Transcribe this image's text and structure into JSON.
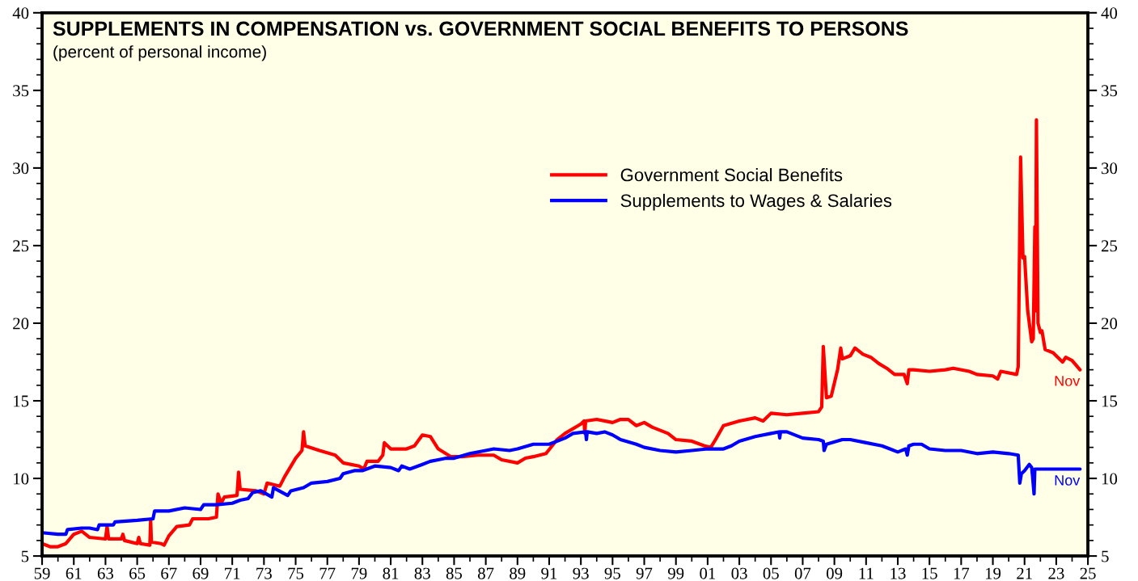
{
  "chart_data": {
    "type": "line",
    "title": "SUPPLEMENTS IN COMPENSATION vs. GOVERNMENT SOCIAL BENEFITS TO PERSONS",
    "subtitle": "(percent of personal income)",
    "series": [
      {
        "name": "Government Social Benefits",
        "color": "#ff0000",
        "x": [
          1959,
          1959.5,
          1960,
          1960.5,
          1961,
          1961.5,
          1962,
          1963,
          1963.1,
          1963.2,
          1964,
          1964.1,
          1964.2,
          1965,
          1965.1,
          1965.2,
          1965.8,
          1965.85,
          1965.9,
          1966.5,
          1966.7,
          1967,
          1967.5,
          1968.3,
          1968.5,
          1969.5,
          1970,
          1970.1,
          1970.3,
          1970.5,
          1971.3,
          1971.4,
          1971.5,
          1972.5,
          1973,
          1973.2,
          1974,
          1974.3,
          1975,
          1975.4,
          1975.5,
          1975.6,
          1976.5,
          1977.5,
          1978,
          1979,
          1979.3,
          1979.5,
          1980.2,
          1980.5,
          1980.6,
          1981,
          1982,
          1982.5,
          1983,
          1983.5,
          1984,
          1984.8,
          1985.5,
          1986.5,
          1987.5,
          1988,
          1989,
          1989.5,
          1990,
          1990.8,
          1991.5,
          1992,
          1993,
          1993.2,
          1993.25,
          1993.3,
          1994,
          1995,
          1995.5,
          1996,
          1996.5,
          1997,
          1997.5,
          1998.5,
          1999,
          2000,
          2000.8,
          2001.2,
          2001.5,
          2002,
          2003,
          2004,
          2004.5,
          2005,
          2006,
          2007,
          2008,
          2008.2,
          2008.3,
          2008.5,
          2008.8,
          2009.2,
          2009.4,
          2009.5,
          2010,
          2010.3,
          2010.8,
          2011.3,
          2011.8,
          2012.3,
          2012.8,
          2013.4,
          2013.6,
          2013.7,
          2014,
          2015,
          2016,
          2016.5,
          2017.5,
          2018,
          2019,
          2019.3,
          2019.5,
          2020.5,
          2020.6,
          2020.75,
          2020.9,
          2021,
          2021.2,
          2021.45,
          2021.55,
          2021.65,
          2021.7,
          2021.75,
          2021.85,
          2022,
          2022.1,
          2022.3,
          2022.8,
          2023.4,
          2023.6,
          2024,
          2024.5
        ],
        "values": [
          5.8,
          5.6,
          5.6,
          5.8,
          6.4,
          6.6,
          6.2,
          6.1,
          6.9,
          6.1,
          6.1,
          6.4,
          6.0,
          5.8,
          6.2,
          5.8,
          5.7,
          7.3,
          5.9,
          5.8,
          5.7,
          6.3,
          6.9,
          7.0,
          7.4,
          7.4,
          7.5,
          9.0,
          8.4,
          8.8,
          8.9,
          10.4,
          9.3,
          9.2,
          9.0,
          9.7,
          9.5,
          10.1,
          11.3,
          11.8,
          13.0,
          12.1,
          11.8,
          11.5,
          11.0,
          10.8,
          10.6,
          11.1,
          11.1,
          11.5,
          12.3,
          11.9,
          11.9,
          12.1,
          12.8,
          12.7,
          11.9,
          11.4,
          11.4,
          11.5,
          11.5,
          11.2,
          11.0,
          11.3,
          11.4,
          11.6,
          12.5,
          12.9,
          13.5,
          13.7,
          12.9,
          13.7,
          13.8,
          13.6,
          13.8,
          13.8,
          13.4,
          13.6,
          13.3,
          12.9,
          12.5,
          12.4,
          12.1,
          12.0,
          12.5,
          13.4,
          13.7,
          13.9,
          13.7,
          14.2,
          14.1,
          14.2,
          14.3,
          14.6,
          18.5,
          15.2,
          15.3,
          17.0,
          18.4,
          17.7,
          17.9,
          18.4,
          18.0,
          17.8,
          17.4,
          17.1,
          16.7,
          16.7,
          16.1,
          17.0,
          17.0,
          16.9,
          17.0,
          17.1,
          16.9,
          16.7,
          16.6,
          16.4,
          16.9,
          16.7,
          17.2,
          30.7,
          24.2,
          24.3,
          20.8,
          18.8,
          19.0,
          26.2,
          20.8,
          33.1,
          20.0,
          19.4,
          19.5,
          18.3,
          18.1,
          17.5,
          17.8,
          17.6,
          17.0
        ]
      },
      {
        "name": "Supplements to Wages & Salaries",
        "color": "#0000ff",
        "x": [
          1959,
          1960,
          1960.5,
          1960.6,
          1961.5,
          1962,
          1962.5,
          1962.6,
          1963.5,
          1963.6,
          1965,
          1966,
          1966.1,
          1967,
          1968,
          1969,
          1969.2,
          1970,
          1971,
          1971.5,
          1972,
          1972.3,
          1972.8,
          1973.5,
          1973.6,
          1974.5,
          1974.7,
          1975.5,
          1976,
          1977,
          1977.8,
          1978,
          1978.7,
          1979.2,
          1980,
          1981,
          1981.5,
          1981.7,
          1982.2,
          1983,
          1983.5,
          1984,
          1984.5,
          1985,
          1986,
          1987,
          1987.5,
          1988.5,
          1989,
          1990,
          1991,
          1992,
          1992.5,
          1993.3,
          1993.35,
          1993.4,
          1994,
          1994.5,
          1995,
          1995.5,
          1996.5,
          1997,
          1998,
          1999,
          2000,
          2001,
          2002,
          2002.5,
          2003,
          2004,
          2005,
          2005.5,
          2005.55,
          2005.6,
          2006,
          2007,
          2008,
          2008.3,
          2008.35,
          2008.5,
          2009.5,
          2010,
          2011,
          2012,
          2012.5,
          2013,
          2013.5,
          2013.6,
          2013.7,
          2014,
          2014.5,
          2015,
          2016,
          2017,
          2018,
          2019,
          2020,
          2020.6,
          2020.7,
          2020.8,
          2021,
          2021.3,
          2021.45,
          2021.5,
          2021.6,
          2021.65,
          2022,
          2023,
          2024,
          2024.5
        ],
        "values": [
          6.5,
          6.4,
          6.4,
          6.7,
          6.8,
          6.8,
          6.7,
          7.0,
          7.0,
          7.2,
          7.3,
          7.4,
          7.9,
          7.9,
          8.1,
          8.0,
          8.3,
          8.3,
          8.4,
          8.6,
          8.7,
          9.1,
          9.2,
          8.8,
          9.4,
          8.9,
          9.2,
          9.4,
          9.7,
          9.8,
          10.0,
          10.3,
          10.5,
          10.5,
          10.8,
          10.7,
          10.5,
          10.8,
          10.6,
          10.9,
          11.1,
          11.2,
          11.3,
          11.3,
          11.6,
          11.8,
          11.9,
          11.8,
          11.9,
          12.2,
          12.2,
          12.6,
          12.9,
          13.0,
          12.5,
          13.0,
          12.9,
          13.0,
          12.8,
          12.5,
          12.2,
          12.0,
          11.8,
          11.7,
          11.8,
          11.9,
          11.9,
          12.1,
          12.4,
          12.7,
          12.9,
          13.0,
          12.6,
          13.0,
          13.0,
          12.6,
          12.5,
          12.4,
          11.8,
          12.2,
          12.5,
          12.5,
          12.3,
          12.1,
          11.9,
          11.7,
          11.9,
          11.5,
          12.1,
          12.2,
          12.2,
          11.9,
          11.8,
          11.8,
          11.6,
          11.7,
          11.6,
          11.5,
          9.7,
          10.3,
          10.5,
          10.9,
          10.7,
          10.2,
          9.0,
          10.6,
          10.6,
          10.6,
          10.6,
          10.6
        ]
      }
    ],
    "annotations": [
      {
        "text": "Nov",
        "x": 2024.5,
        "y": 17.0
      },
      {
        "text": "Nov",
        "x": 2024.5,
        "y": 10.6
      }
    ],
    "xlim": [
      1959,
      2025
    ],
    "xticks": [
      {
        "value": 1959,
        "label": "59"
      },
      {
        "value": 1960,
        "label": null
      },
      {
        "value": 1961,
        "label": "61"
      },
      {
        "value": 1962,
        "label": null
      },
      {
        "value": 1963,
        "label": "63"
      },
      {
        "value": 1964,
        "label": null
      },
      {
        "value": 1965,
        "label": "65"
      },
      {
        "value": 1966,
        "label": null
      },
      {
        "value": 1967,
        "label": "67"
      },
      {
        "value": 1968,
        "label": null
      },
      {
        "value": 1969,
        "label": "69"
      },
      {
        "value": 1970,
        "label": null
      },
      {
        "value": 1971,
        "label": "71"
      },
      {
        "value": 1972,
        "label": null
      },
      {
        "value": 1973,
        "label": "73"
      },
      {
        "value": 1974,
        "label": null
      },
      {
        "value": 1975,
        "label": "75"
      },
      {
        "value": 1976,
        "label": null
      },
      {
        "value": 1977,
        "label": "77"
      },
      {
        "value": 1978,
        "label": null
      },
      {
        "value": 1979,
        "label": "79"
      },
      {
        "value": 1980,
        "label": null
      },
      {
        "value": 1981,
        "label": "81"
      },
      {
        "value": 1982,
        "label": null
      },
      {
        "value": 1983,
        "label": "83"
      },
      {
        "value": 1984,
        "label": null
      },
      {
        "value": 1985,
        "label": "85"
      },
      {
        "value": 1986,
        "label": null
      },
      {
        "value": 1987,
        "label": "87"
      },
      {
        "value": 1988,
        "label": null
      },
      {
        "value": 1989,
        "label": "89"
      },
      {
        "value": 1990,
        "label": null
      },
      {
        "value": 1991,
        "label": "91"
      },
      {
        "value": 1992,
        "label": null
      },
      {
        "value": 1993,
        "label": "93"
      },
      {
        "value": 1994,
        "label": null
      },
      {
        "value": 1995,
        "label": "95"
      },
      {
        "value": 1996,
        "label": null
      },
      {
        "value": 1997,
        "label": "97"
      },
      {
        "value": 1998,
        "label": null
      },
      {
        "value": 1999,
        "label": "99"
      },
      {
        "value": 2000,
        "label": null
      },
      {
        "value": 2001,
        "label": "01"
      },
      {
        "value": 2002,
        "label": null
      },
      {
        "value": 2003,
        "label": "03"
      },
      {
        "value": 2004,
        "label": null
      },
      {
        "value": 2005,
        "label": "05"
      },
      {
        "value": 2006,
        "label": null
      },
      {
        "value": 2007,
        "label": "07"
      },
      {
        "value": 2008,
        "label": null
      },
      {
        "value": 2009,
        "label": "09"
      },
      {
        "value": 2010,
        "label": null
      },
      {
        "value": 2011,
        "label": "11"
      },
      {
        "value": 2012,
        "label": null
      },
      {
        "value": 2013,
        "label": "13"
      },
      {
        "value": 2014,
        "label": null
      },
      {
        "value": 2015,
        "label": "15"
      },
      {
        "value": 2016,
        "label": null
      },
      {
        "value": 2017,
        "label": "17"
      },
      {
        "value": 2018,
        "label": null
      },
      {
        "value": 2019,
        "label": "19"
      },
      {
        "value": 2020,
        "label": null
      },
      {
        "value": 2021,
        "label": "21"
      },
      {
        "value": 2022,
        "label": null
      },
      {
        "value": 2023,
        "label": "23"
      },
      {
        "value": 2024,
        "label": null
      },
      {
        "value": 2025,
        "label": "25"
      }
    ],
    "ylim": [
      5,
      40
    ],
    "yticks": [
      5,
      {
        "value": 6,
        "label": null
      },
      {
        "value": 7,
        "label": null
      },
      {
        "value": 8,
        "label": null
      },
      {
        "value": 9,
        "label": null
      },
      10,
      {
        "value": 11,
        "label": null
      },
      {
        "value": 12,
        "label": null
      },
      {
        "value": 13,
        "label": null
      },
      {
        "value": 14,
        "label": null
      },
      15,
      {
        "value": 16,
        "label": null
      },
      {
        "value": 17,
        "label": null
      },
      {
        "value": 18,
        "label": null
      },
      {
        "value": 19,
        "label": null
      },
      20,
      {
        "value": 21,
        "label": null
      },
      {
        "value": 22,
        "label": null
      },
      {
        "value": 23,
        "label": null
      },
      {
        "value": 24,
        "label": null
      },
      25,
      {
        "value": 26,
        "label": null
      },
      {
        "value": 27,
        "label": null
      },
      {
        "value": 28,
        "label": null
      },
      {
        "value": 29,
        "label": null
      },
      30,
      {
        "value": 31,
        "label": null
      },
      {
        "value": 32,
        "label": null
      },
      {
        "value": 33,
        "label": null
      },
      {
        "value": 34,
        "label": null
      },
      35,
      {
        "value": 36,
        "label": null
      },
      {
        "value": 37,
        "label": null
      },
      {
        "value": 38,
        "label": null
      },
      {
        "value": 39,
        "label": null
      },
      40
    ],
    "y2lim": [
      5,
      40
    ],
    "y2ticks": [
      5,
      {
        "value": 6,
        "label": null
      },
      {
        "value": 7,
        "label": null
      },
      {
        "value": 8,
        "label": null
      },
      {
        "value": 9,
        "label": null
      },
      10,
      {
        "value": 11,
        "label": null
      },
      {
        "value": 12,
        "label": null
      },
      {
        "value": 13,
        "label": null
      },
      {
        "value": 14,
        "label": null
      },
      15,
      {
        "value": 16,
        "label": null
      },
      {
        "value": 17,
        "label": null
      },
      {
        "value": 18,
        "label": null
      },
      {
        "value": 19,
        "label": null
      },
      20,
      {
        "value": 21,
        "label": null
      },
      {
        "value": 22,
        "label": null
      },
      {
        "value": 23,
        "label": null
      },
      {
        "value": 24,
        "label": null
      },
      25,
      {
        "value": 26,
        "label": null
      },
      {
        "value": 27,
        "label": null
      },
      {
        "value": 28,
        "label": null
      },
      {
        "value": 29,
        "label": null
      },
      30,
      {
        "value": 31,
        "label": null
      },
      {
        "value": 32,
        "label": null
      },
      {
        "value": 33,
        "label": null
      },
      {
        "value": 34,
        "label": null
      },
      35,
      {
        "value": 36,
        "label": null
      },
      {
        "value": 37,
        "label": null
      },
      {
        "value": 38,
        "label": null
      },
      {
        "value": 39,
        "label": null
      },
      40
    ],
    "grid": false,
    "legend": "center",
    "marker": "none",
    "line_style": "solid"
  }
}
